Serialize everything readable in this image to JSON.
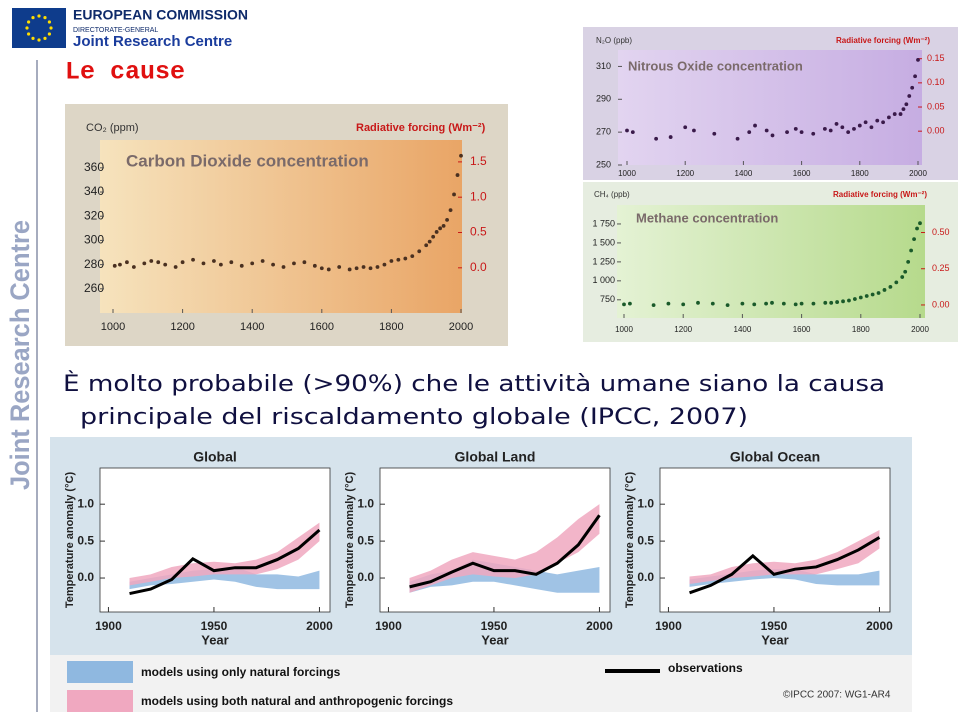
{
  "header": {
    "org": "EUROPEAN COMMISSION",
    "dg": "DIRECTORATE-GENERAL",
    "centre": "Joint Research Centre"
  },
  "side_label": "Joint Research Centre",
  "title": "Le cause",
  "statement": [
    "È molto probabile (>90%) che le attività umane siano la causa",
    "principale del riscaldamento globale (IPCC, 2007)"
  ],
  "chart_data": [
    {
      "type": "scatter",
      "title": "Carbon Dioxide concentration",
      "y_label": "CO₂ (ppm)",
      "y2_label": "Radiative forcing (Wm⁻²)",
      "x": [
        1005,
        1020,
        1040,
        1060,
        1090,
        1110,
        1130,
        1150,
        1180,
        1200,
        1230,
        1260,
        1290,
        1310,
        1340,
        1370,
        1400,
        1430,
        1460,
        1490,
        1520,
        1550,
        1580,
        1600,
        1620,
        1650,
        1680,
        1700,
        1720,
        1740,
        1760,
        1780,
        1800,
        1820,
        1840,
        1860,
        1880,
        1900,
        1910,
        1920,
        1930,
        1940,
        1950,
        1960,
        1970,
        1980,
        1990,
        2000
      ],
      "series": [
        {
          "color": "#4a3020",
          "values": [
            279,
            280,
            282,
            278,
            281,
            283,
            282,
            280,
            278,
            282,
            284,
            281,
            283,
            280,
            282,
            279,
            281,
            283,
            280,
            278,
            281,
            282,
            279,
            277,
            276,
            278,
            276,
            277,
            278,
            277,
            278,
            280,
            283,
            284,
            285,
            287,
            291,
            296,
            299,
            303,
            307,
            310,
            312,
            317,
            325,
            338,
            354,
            370
          ]
        }
      ],
      "xlim": [
        1000,
        2000
      ],
      "xticks": [
        1000,
        1200,
        1400,
        1600,
        1800,
        2000
      ],
      "ylim": [
        240,
        383
      ],
      "yticks": [
        260,
        280,
        300,
        320,
        340,
        360
      ],
      "y2lim": [
        -0.64,
        1.81
      ],
      "y2ticks": [
        {
          "value": 0,
          "label": "0.0"
        },
        0.5,
        {
          "value": 1,
          "label": "1.0"
        },
        1.5
      ]
    },
    {
      "type": "scatter",
      "title": "Nitrous Oxide concentration",
      "y_label": "N₂O (ppb)",
      "y2_label": "Radiative forcing (Wm⁻²)",
      "x": [
        1000,
        1020,
        1100,
        1150,
        1200,
        1230,
        1300,
        1380,
        1420,
        1440,
        1480,
        1500,
        1550,
        1580,
        1600,
        1640,
        1680,
        1700,
        1720,
        1740,
        1760,
        1780,
        1800,
        1820,
        1840,
        1860,
        1880,
        1900,
        1920,
        1940,
        1950,
        1960,
        1970,
        1980,
        1990,
        2000
      ],
      "series": [
        {
          "color": "#3a1a4a",
          "values": [
            271,
            270,
            266,
            267,
            273,
            271,
            269,
            266,
            270,
            274,
            271,
            268,
            270,
            272,
            270,
            269,
            272,
            271,
            275,
            273,
            270,
            272,
            274,
            276,
            273,
            277,
            276,
            279,
            281,
            281,
            284,
            287,
            292,
            297,
            304,
            314
          ]
        }
      ],
      "xlim": [
        1000,
        2000
      ],
      "xticks": [
        1000,
        1200,
        1400,
        1600,
        1800,
        2000
      ],
      "ylim": [
        250,
        320
      ],
      "yticks": [
        250,
        270,
        290,
        310
      ],
      "y2lim": [
        -0.07,
        0.168
      ],
      "y2ticks": [
        {
          "value": 0,
          "label": "0.00"
        },
        {
          "value": 0.05,
          "label": "0.05"
        },
        {
          "value": 0.1,
          "label": "0.10"
        },
        {
          "value": 0.15,
          "label": "0.15"
        }
      ]
    },
    {
      "type": "scatter",
      "title": "Methane concentration",
      "y_label": "CH₄ (ppb)",
      "y2_label": "Radiative forcing (Wm⁻²)",
      "x": [
        1000,
        1020,
        1100,
        1150,
        1200,
        1250,
        1300,
        1350,
        1400,
        1440,
        1480,
        1500,
        1540,
        1580,
        1600,
        1640,
        1680,
        1700,
        1720,
        1740,
        1760,
        1780,
        1800,
        1820,
        1840,
        1860,
        1880,
        1900,
        1920,
        1940,
        1950,
        1960,
        1970,
        1980,
        1990,
        2000
      ],
      "series": [
        {
          "color": "#1a5a2a",
          "values": [
            690,
            700,
            680,
            700,
            690,
            710,
            700,
            680,
            700,
            690,
            700,
            710,
            700,
            690,
            700,
            700,
            710,
            710,
            720,
            730,
            740,
            760,
            780,
            800,
            820,
            840,
            880,
            920,
            980,
            1050,
            1120,
            1250,
            1400,
            1550,
            1690,
            1760
          ]
        }
      ],
      "xlim": [
        1000,
        2000
      ],
      "xticks": [
        1000,
        1200,
        1400,
        1600,
        1800,
        2000
      ],
      "ylim": [
        510,
        2000
      ],
      "yticks": [
        750,
        {
          "value": 1000,
          "label": "1 000"
        },
        {
          "value": 1250,
          "label": "1 250"
        },
        {
          "value": 1500,
          "label": "1 500"
        },
        {
          "value": 1750,
          "label": "1 750"
        }
      ],
      "y2lim": [
        -0.09,
        0.69
      ],
      "y2ticks": [
        {
          "value": 0,
          "label": "0.00"
        },
        0.25,
        {
          "value": 0.5,
          "label": "0.50"
        }
      ]
    },
    {
      "type": "band",
      "title": "Global",
      "y_label": "Temperature anomaly (°C)",
      "x_label": "Year",
      "x": [
        1910,
        1920,
        1930,
        1940,
        1950,
        1960,
        1970,
        1980,
        1990,
        2000
      ],
      "series": [
        {
          "color": "#8fb8e0",
          "lower": [
            -0.15,
            -0.1,
            -0.08,
            -0.05,
            -0.02,
            -0.05,
            -0.12,
            -0.15,
            -0.15,
            -0.15
          ],
          "upper": [
            -0.05,
            0,
            0.05,
            0.1,
            0.12,
            0.15,
            0.05,
            0.05,
            0.02,
            0.1
          ]
        },
        {
          "color": "#f0a8c0",
          "lower": [
            -0.1,
            -0.05,
            0,
            0.02,
            0.05,
            0.05,
            0.05,
            0.12,
            0.25,
            0.5
          ],
          "upper": [
            0,
            0.05,
            0.15,
            0.2,
            0.22,
            0.2,
            0.25,
            0.35,
            0.55,
            0.75
          ]
        },
        {
          "color": "#000000",
          "values": [
            -0.21,
            -0.15,
            -0.02,
            0.26,
            0.1,
            0.14,
            0.14,
            0.25,
            0.4,
            0.65
          ]
        }
      ],
      "xlim": [
        1896,
        2005
      ],
      "xticks": [
        1900,
        1950,
        2000
      ],
      "ylim": [
        -0.46,
        1.49
      ],
      "yticks": [
        {
          "value": 0,
          "label": "0.0"
        },
        0.5,
        {
          "value": 1,
          "label": "1.0"
        }
      ]
    },
    {
      "type": "band",
      "title": "Global Land",
      "y_label": "Temperature anomaly (°C)",
      "x_label": "Year",
      "x": [
        1910,
        1920,
        1930,
        1940,
        1950,
        1960,
        1970,
        1980,
        1990,
        2000
      ],
      "series": [
        {
          "color": "#8fb8e0",
          "lower": [
            -0.2,
            -0.12,
            -0.1,
            -0.05,
            -0.05,
            -0.1,
            -0.15,
            -0.2,
            -0.2,
            -0.2
          ],
          "upper": [
            -0.05,
            0.05,
            0.1,
            0.25,
            0.2,
            0.15,
            0.1,
            0.05,
            0.1,
            0.15
          ]
        },
        {
          "color": "#f0a8c0",
          "lower": [
            -0.2,
            -0.1,
            0,
            0.05,
            0.02,
            0,
            0.05,
            0.2,
            0.35,
            0.6
          ],
          "upper": [
            0,
            0.1,
            0.25,
            0.35,
            0.3,
            0.25,
            0.35,
            0.55,
            0.8,
            1.0
          ]
        },
        {
          "color": "#000000",
          "values": [
            -0.12,
            -0.05,
            0.08,
            0.2,
            0.1,
            0.1,
            0.05,
            0.2,
            0.45,
            0.85
          ]
        }
      ],
      "xlim": [
        1896,
        2005
      ],
      "xticks": [
        1900,
        1950,
        2000
      ],
      "ylim": [
        -0.46,
        1.49
      ],
      "yticks": [
        {
          "value": 0,
          "label": "0.0"
        },
        0.5,
        {
          "value": 1,
          "label": "1.0"
        }
      ]
    },
    {
      "type": "band",
      "title": "Global Ocean",
      "y_label": "Temperature anomaly (°C)",
      "x_label": "Year",
      "x": [
        1910,
        1920,
        1930,
        1940,
        1950,
        1960,
        1970,
        1980,
        1990,
        2000
      ],
      "series": [
        {
          "color": "#8fb8e0",
          "lower": [
            -0.12,
            -0.08,
            -0.05,
            -0.02,
            0,
            -0.02,
            -0.08,
            -0.1,
            -0.1,
            -0.1
          ],
          "upper": [
            -0.02,
            0.02,
            0.06,
            0.1,
            0.12,
            0.12,
            0.05,
            0.05,
            0.05,
            0.1
          ]
        },
        {
          "color": "#f0a8c0",
          "lower": [
            -0.08,
            -0.04,
            0,
            0.02,
            0.05,
            0.05,
            0.05,
            0.12,
            0.2,
            0.4
          ],
          "upper": [
            0.02,
            0.05,
            0.15,
            0.2,
            0.22,
            0.2,
            0.25,
            0.35,
            0.5,
            0.65
          ]
        },
        {
          "color": "#000000",
          "values": [
            -0.2,
            -0.1,
            0.05,
            0.3,
            0.05,
            0.12,
            0.15,
            0.25,
            0.38,
            0.55
          ]
        }
      ],
      "xlim": [
        1896,
        2005
      ],
      "xticks": [
        1900,
        1950,
        2000
      ],
      "ylim": [
        -0.46,
        1.49
      ],
      "yticks": [
        {
          "value": 0,
          "label": "0.0"
        },
        0.5,
        {
          "value": 1,
          "label": "1.0"
        }
      ]
    }
  ],
  "legend": {
    "items": [
      {
        "label": "models using only natural forcings",
        "color": "#8fb8e0"
      },
      {
        "label": "models using both natural and anthropogenic forcings",
        "color": "#f0a8c0"
      },
      {
        "label": "observations",
        "color": "#000000"
      }
    ]
  },
  "credit": "©IPCC 2007: WG1-AR4"
}
